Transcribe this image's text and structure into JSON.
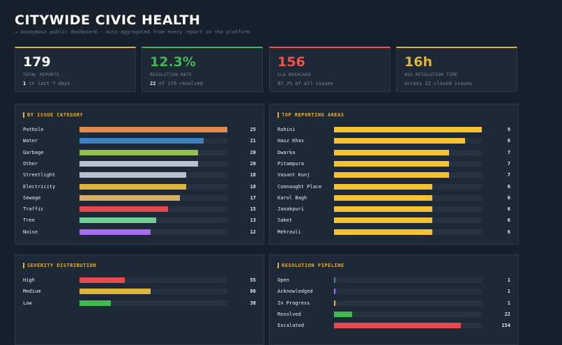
{
  "header": {
    "title": "CITYWIDE CIVIC HEALTH",
    "subtitle": "→ Anonymous public dashboard · auto-aggregated from every report on the platform"
  },
  "stats": [
    {
      "value": "179",
      "label": "TOTAL REPORTS",
      "sub_bold": "1",
      "sub_text": " in last 7 days",
      "color": "#ffffff"
    },
    {
      "value": "12.3%",
      "label": "RESOLUTION RATE",
      "sub_bold": "22",
      "sub_text": " of 179 resolved",
      "color": "#3fb950"
    },
    {
      "value": "156",
      "label": "SLA BREACHED",
      "sub_bold": "",
      "sub_text": "87.2% of all issues",
      "color": "#f85149"
    },
    {
      "value": "16h",
      "label": "AVG RESOLUTION TIME",
      "sub_bold": "",
      "sub_text": "across 22 closed issues",
      "color": "#e0b23a"
    }
  ],
  "panels": {
    "category": {
      "title": "BY ISSUE CATEGORY",
      "max": 25,
      "rows": [
        {
          "label": "Pothole",
          "value": 25,
          "color": "#e08a4e"
        },
        {
          "label": "Water",
          "value": 21,
          "color": "#3b82c4"
        },
        {
          "label": "Garbage",
          "value": 20,
          "color": "#8fc14a"
        },
        {
          "label": "Other",
          "value": 20,
          "color": "#b7c2cc"
        },
        {
          "label": "Streetlight",
          "value": 18,
          "color": "#b7c2cc"
        },
        {
          "label": "Electricity",
          "value": 18,
          "color": "#e0b23a"
        },
        {
          "label": "Sewage",
          "value": 17,
          "color": "#d4b06a"
        },
        {
          "label": "Traffic",
          "value": 15,
          "color": "#e5484d"
        },
        {
          "label": "Tree",
          "value": 13,
          "color": "#6fcf97"
        },
        {
          "label": "Noise",
          "value": 12,
          "color": "#a56cf0"
        }
      ]
    },
    "areas": {
      "title": "TOP REPORTING AREAS",
      "max": 9,
      "rows": [
        {
          "label": "Rohini",
          "value": 9,
          "color": "#f5c12e"
        },
        {
          "label": "Hauz Khas",
          "value": 8,
          "color": "#f5c12e"
        },
        {
          "label": "Dwarka",
          "value": 7,
          "color": "#f5c12e"
        },
        {
          "label": "Pitampura",
          "value": 7,
          "color": "#f5c12e"
        },
        {
          "label": "Vasant Kunj",
          "value": 7,
          "color": "#f5c12e"
        },
        {
          "label": "Connaught Place",
          "value": 6,
          "color": "#f5c12e"
        },
        {
          "label": "Karol Bagh",
          "value": 6,
          "color": "#f5c12e"
        },
        {
          "label": "Janakpuri",
          "value": 6,
          "color": "#f5c12e"
        },
        {
          "label": "Saket",
          "value": 6,
          "color": "#f5c12e"
        },
        {
          "label": "Mehrauli",
          "value": 6,
          "color": "#f5c12e"
        }
      ]
    },
    "severity": {
      "title": "SEVERITY DISTRIBUTION",
      "max": 179,
      "rows": [
        {
          "label": "High",
          "value": 55,
          "color": "#e5484d"
        },
        {
          "label": "Medium",
          "value": 86,
          "color": "#e0b23a"
        },
        {
          "label": "Low",
          "value": 38,
          "color": "#3fb950"
        }
      ]
    },
    "pipeline": {
      "title": "RESOLUTION PIPELINE",
      "max": 179,
      "rows": [
        {
          "label": "Open",
          "value": 1,
          "color": "#3b82c4"
        },
        {
          "label": "Acknowledged",
          "value": 1,
          "color": "#a56cf0"
        },
        {
          "label": "In Progress",
          "value": 1,
          "color": "#e0b23a"
        },
        {
          "label": "Resolved",
          "value": 22,
          "color": "#3fb950"
        },
        {
          "label": "Escalated",
          "value": 154,
          "color": "#e5484d"
        }
      ]
    }
  }
}
